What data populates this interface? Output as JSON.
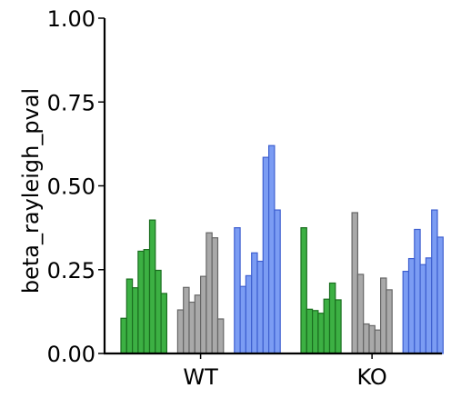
{
  "chart_data": {
    "type": "bar",
    "title": "",
    "xlabel": "",
    "ylabel": "beta_rayleigh_pval",
    "ylim": [
      0,
      1
    ],
    "yticks": [
      0,
      0.25,
      0.5,
      0.75,
      1
    ],
    "ytick_labels": [
      "0.00",
      "0.25",
      "0.50",
      "0.75",
      "1.00"
    ],
    "categories": [
      "WT",
      "KO"
    ],
    "grid": false,
    "legend": "none",
    "groups": [
      {
        "category": "WT",
        "series": [
          {
            "color": "#3cb043",
            "edge": "#1a6e1f",
            "values": [
              0.105,
              0.222,
              0.196,
              0.305,
              0.31,
              0.398,
              0.248,
              0.179
            ]
          },
          {
            "color": "#a9a9a9",
            "edge": "#666666",
            "values": [
              0.13,
              0.197,
              0.153,
              0.174,
              0.23,
              0.36,
              0.345,
              0.103
            ]
          },
          {
            "color": "#7b9cf3",
            "edge": "#3e5fd0",
            "values": [
              0.375,
              0.2,
              0.232,
              0.3,
              0.275,
              0.585,
              0.62,
              0.428
            ]
          }
        ]
      },
      {
        "category": "KO",
        "series": [
          {
            "color": "#3cb043",
            "edge": "#1a6e1f",
            "values": [
              0.375,
              0.132,
              0.128,
              0.12,
              0.162,
              0.21,
              0.16
            ]
          },
          {
            "color": "#a9a9a9",
            "edge": "#666666",
            "values": [
              0.42,
              0.236,
              0.088,
              0.083,
              0.07,
              0.225,
              0.19
            ]
          },
          {
            "color": "#7b9cf3",
            "edge": "#3e5fd0",
            "values": [
              0.245,
              0.283,
              0.37,
              0.265,
              0.285,
              0.428,
              0.347
            ]
          }
        ]
      }
    ]
  }
}
